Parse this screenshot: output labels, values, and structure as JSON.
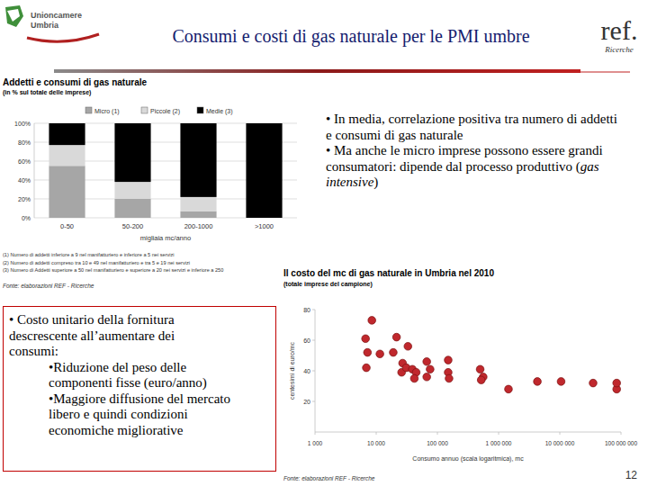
{
  "header": {
    "title": "Consumi e costi di gas naturale per le PMI umbre",
    "logo_left": [
      "Unioncamere",
      "Umbria"
    ],
    "logo_right": "ref.",
    "logo_right_sub": "Ricerche"
  },
  "chart_data": [
    {
      "type": "bar",
      "stacked": true,
      "title": "Addetti e consumi di gas naturale",
      "subtitle": "(in % sul totale delle imprese)",
      "categories": [
        "0-50",
        "50-200",
        "200-1000",
        ">1000"
      ],
      "series": [
        {
          "name": "Micro (1)",
          "color": "#a6a6a6",
          "values": [
            55,
            20,
            7,
            0
          ]
        },
        {
          "name": "Piccole (2)",
          "color": "#d9d9d9",
          "values": [
            22,
            18,
            15,
            0
          ]
        },
        {
          "name": "Medie (3)",
          "color": "#000000",
          "values": [
            23,
            62,
            78,
            100
          ]
        }
      ],
      "ylim": [
        0,
        100
      ],
      "yticks": [
        {
          "value": 0,
          "label": "0%"
        },
        {
          "value": 20,
          "label": "20%"
        },
        {
          "value": 40,
          "label": "40%"
        },
        {
          "value": 60,
          "label": "60%"
        },
        {
          "value": 80,
          "label": "80%"
        },
        {
          "value": 100,
          "label": "100%"
        }
      ],
      "xlabel": "migliaia mc/anno",
      "legend": "top",
      "grid": true,
      "annotations": [
        "(1) Numero di addetti inferiore a 9 nel manifatturiero e inferiore a 5 nei servizi",
        "(2) Numero di addetti compreso tra 10 e 49 nel manifatturiero e tra 5 e 19 nei servizi",
        "(3) Numero di Addetti superiore a 50 nel manifatturiero e superiore a 20 nei servizi e inferiore a 250"
      ],
      "source": "Fonte: elaborazioni REF - Ricerche"
    },
    {
      "type": "scatter",
      "title": "Il costo del mc di gas naturale in Umbria nel 2010",
      "subtitle": "(totale imprese del campione)",
      "xlabel": "Consumo annuo (scala logaritmica), mc",
      "ylabel": "centesimi di euro/mc",
      "log": "x",
      "color": "#c0282d",
      "marker": "circle",
      "grid": false,
      "x": [
        8500,
        6700,
        7200,
        6900,
        11500,
        19000,
        21500,
        33000,
        27000,
        26000,
        31000,
        39000,
        45000,
        42000,
        67000,
        76000,
        67000,
        150000,
        150000,
        155000,
        500000,
        560000,
        520000,
        1450000,
        4300000,
        10500000,
        35000000,
        85000000,
        85000000
      ],
      "values": [
        73,
        61,
        52,
        42,
        51,
        52,
        62,
        56,
        45,
        39,
        42,
        41,
        39,
        35,
        46,
        41,
        36,
        47,
        39,
        35,
        41,
        36,
        34,
        28,
        33,
        33,
        32,
        28,
        32
      ],
      "xlim": [
        1000,
        100000000
      ],
      "xticks": [
        {
          "value": 1000,
          "label": "1 000"
        },
        {
          "value": 10000,
          "label": "10 000"
        },
        {
          "value": 100000,
          "label": "100 000"
        },
        {
          "value": 1000000,
          "label": "1 000 000"
        },
        {
          "value": 10000000,
          "label": "10 000 000"
        },
        {
          "value": 100000000,
          "label": "100 000 000"
        }
      ],
      "ylim": [
        0,
        80
      ],
      "yticks": [
        20,
        40,
        60,
        80
      ],
      "source": "Fonte: elaborazioni REF - Ricerche"
    }
  ],
  "text_boxes": {
    "top_right": [
      [
        {
          "text": "• In media, correlazione positiva tra numero di addetti e consumi di gas naturale"
        }
      ],
      [
        {
          "text": "• Ma anche le micro imprese possono essere grandi consumatori: dipende dal processo produttivo ("
        },
        {
          "text": "gas intensive",
          "italic": true
        },
        {
          "text": ")"
        }
      ]
    ],
    "bottom_left": {
      "lead": "• Costo unitario della fornitura descrescente all’aumentare dei consumi:",
      "items": [
        "•Riduzione del peso delle componenti fisse (euro/anno)",
        "•Maggiore diffusione del mercato libero e quindi condizioni economiche migliorative"
      ]
    }
  },
  "page_number": "12"
}
